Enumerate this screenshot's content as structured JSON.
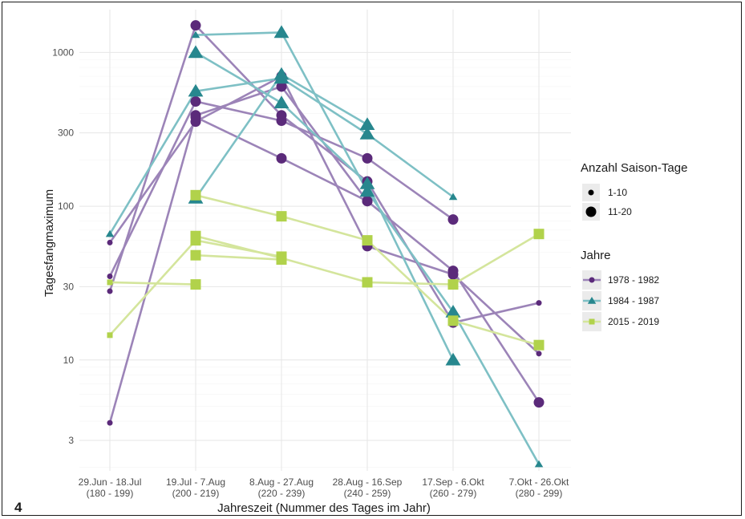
{
  "figure_number": "4",
  "chart_data": {
    "type": "line",
    "title": "",
    "xlabel": "Jahreszeit (Nummer des Tages im Jahr)",
    "ylabel": "Tagesfangmaximum",
    "y_scale": "log",
    "ylim": [
      1.9,
      1900
    ],
    "yticks": [
      3,
      10,
      30,
      100,
      300,
      1000
    ],
    "categories": [
      [
        "29.Jun - 18.Jul",
        "(180 - 199)"
      ],
      [
        "19.Jul - 7.Aug",
        "(200 - 219)"
      ],
      [
        "8.Aug - 27.Aug",
        "(220 - 239)"
      ],
      [
        "28.Aug - 16.Sep",
        "(240 - 259)"
      ],
      [
        "17.Sep - 6.Okt",
        "(260 - 279)"
      ],
      [
        "7.Okt - 26.Okt",
        "(280 - 299)"
      ]
    ],
    "grid": true,
    "legend_size": {
      "title": "Anzahl Saison-Tage",
      "items": [
        {
          "label": "1-10",
          "size": "small"
        },
        {
          "label": "11-20",
          "size": "large"
        }
      ]
    },
    "legend_color": {
      "title": "Jahre",
      "items": [
        {
          "label": "1978 - 1982",
          "color": "#5b2a7a",
          "line_color": "#9c84b8",
          "shape": "circle"
        },
        {
          "label": "1984 - 1987",
          "color": "#27878e",
          "line_color": "#7ec0c5",
          "shape": "triangle"
        },
        {
          "label": "2015 - 2019",
          "color": "#b1d24b",
          "line_color": "#d4e59c",
          "shape": "square"
        }
      ]
    },
    "groups": [
      {
        "name": "1978 - 1982",
        "series": [
          {
            "values": [
              {
                "x": 0,
                "y": 3.9,
                "n": "small"
              },
              {
                "x": 1,
                "y": 390,
                "n": "large"
              },
              {
                "x": 2,
                "y": 600,
                "n": "large"
              },
              {
                "x": 3,
                "y": 108,
                "n": "large"
              },
              {
                "x": 4,
                "y": 38,
                "n": "large"
              },
              {
                "x": 5,
                "y": 5.3,
                "n": "large"
              }
            ]
          },
          {
            "values": [
              {
                "x": 0,
                "y": 58,
                "n": "small"
              },
              {
                "x": 1,
                "y": 355,
                "n": "large"
              },
              {
                "x": 2,
                "y": 700,
                "n": "large"
              },
              {
                "x": 3,
                "y": 55,
                "n": "large"
              },
              {
                "x": 4,
                "y": 36,
                "n": "large"
              },
              {
                "x": 5,
                "y": 11,
                "n": "small"
              }
            ]
          },
          {
            "values": [
              {
                "x": 0,
                "y": 35,
                "n": "small"
              },
              {
                "x": 1,
                "y": 480,
                "n": "large"
              },
              {
                "x": 2,
                "y": 360,
                "n": "large"
              },
              {
                "x": 3,
                "y": 205,
                "n": "large"
              },
              {
                "x": 4,
                "y": 82,
                "n": "large"
              }
            ]
          },
          {
            "values": [
              {
                "x": 0,
                "y": 28,
                "n": "small"
              },
              {
                "x": 1,
                "y": 1500,
                "n": "large"
              },
              {
                "x": 2,
                "y": 390,
                "n": "large"
              },
              {
                "x": 3,
                "y": 145,
                "n": "large"
              },
              {
                "x": 4,
                "y": 17.5,
                "n": "large"
              },
              {
                "x": 5,
                "y": 23.5,
                "n": "small"
              }
            ]
          },
          {
            "values": [
              {
                "x": 1,
                "y": 380,
                "n": "large"
              },
              {
                "x": 2,
                "y": 205,
                "n": "large"
              },
              {
                "x": 3,
                "y": 108,
                "n": "large"
              }
            ]
          }
        ]
      },
      {
        "name": "1984 - 1987",
        "series": [
          {
            "values": [
              {
                "x": 0,
                "y": 66,
                "n": "small"
              },
              {
                "x": 1,
                "y": 560,
                "n": "large"
              },
              {
                "x": 2,
                "y": 680,
                "n": "large"
              },
              {
                "x": 3,
                "y": 295,
                "n": "large"
              },
              {
                "x": 4,
                "y": 115,
                "n": "small"
              }
            ]
          },
          {
            "values": [
              {
                "x": 1,
                "y": 1300,
                "n": "small"
              },
              {
                "x": 2,
                "y": 1350,
                "n": "large"
              },
              {
                "x": 3,
                "y": 125,
                "n": "large"
              },
              {
                "x": 4,
                "y": 20.5,
                "n": "large"
              },
              {
                "x": 5,
                "y": 2.1,
                "n": "small"
              }
            ]
          },
          {
            "values": [
              {
                "x": 1,
                "y": 1000,
                "n": "large"
              },
              {
                "x": 2,
                "y": 470,
                "n": "large"
              },
              {
                "x": 3,
                "y": 140,
                "n": "large"
              },
              {
                "x": 4,
                "y": 10,
                "n": "large"
              }
            ]
          },
          {
            "values": [
              {
                "x": 1,
                "y": 113,
                "n": "large"
              },
              {
                "x": 2,
                "y": 720,
                "n": "large"
              },
              {
                "x": 3,
                "y": 340,
                "n": "large"
              }
            ]
          }
        ]
      },
      {
        "name": "2015 - 2019",
        "series": [
          {
            "values": [
              {
                "x": 0,
                "y": 14.5,
                "n": "small"
              },
              {
                "x": 1,
                "y": 60,
                "n": "large"
              },
              {
                "x": 2,
                "y": 47,
                "n": "large"
              }
            ]
          },
          {
            "values": [
              {
                "x": 0,
                "y": 32,
                "n": "small"
              },
              {
                "x": 1,
                "y": 31,
                "n": "large"
              }
            ]
          },
          {
            "values": [
              {
                "x": 1,
                "y": 48,
                "n": "large"
              },
              {
                "x": 2,
                "y": 45,
                "n": "large"
              }
            ]
          },
          {
            "values": [
              {
                "x": 1,
                "y": 118,
                "n": "large"
              },
              {
                "x": 2,
                "y": 86,
                "n": "large"
              },
              {
                "x": 3,
                "y": 60,
                "n": "large"
              },
              {
                "x": 4,
                "y": 18,
                "n": "large"
              },
              {
                "x": 5,
                "y": 12.5,
                "n": "large"
              }
            ]
          },
          {
            "values": [
              {
                "x": 1,
                "y": 64,
                "n": "large"
              },
              {
                "x": 2,
                "y": 46,
                "n": "large"
              },
              {
                "x": 3,
                "y": 32,
                "n": "large"
              },
              {
                "x": 4,
                "y": 31,
                "n": "large"
              },
              {
                "x": 5,
                "y": 66,
                "n": "large"
              }
            ]
          }
        ]
      }
    ]
  }
}
